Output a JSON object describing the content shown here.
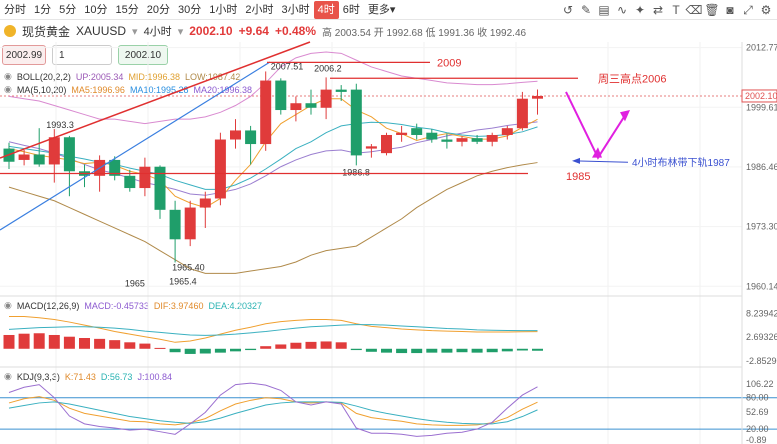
{
  "toolbar": {
    "timeframes": [
      "分时",
      "1分",
      "5分",
      "10分",
      "15分",
      "20分",
      "30分",
      "1小时",
      "2小时",
      "3小时",
      "4时",
      "6时",
      "更多"
    ],
    "active": "4时",
    "more": "更多▾",
    "icons": [
      "history-icon",
      "pen-icon",
      "bar-type-icon",
      "indicator-icon",
      "sparkle-icon",
      "compare-icon",
      "text-icon",
      "eraser-icon",
      "trash-icon",
      "camera-icon",
      "fullscreen-icon",
      "settings-icon"
    ]
  },
  "quote": {
    "name": "现货黄金",
    "symbol": "XAUUSD",
    "timeframe": "4小时",
    "price": "2002.10",
    "change": "+9.64",
    "change_pct": "+0.48%",
    "ohlc": "高 2003.54 开 1992.68 低 1991.36 收 1992.46"
  },
  "order": {
    "sell": "2002.99",
    "lots": "1",
    "buy": "2002.10"
  },
  "indicators": {
    "boll": {
      "name": "BOLL(20,2,2)",
      "up": "UP:2005.34",
      "mid": "MID:1996.38",
      "low": "LOW:1987.42"
    },
    "ma": {
      "name": "MA(5,10,20)",
      "ma5": "MA5:1996.96",
      "ma10": "MA10:1995.28",
      "ma20": "MA20:1996.38"
    },
    "macd": {
      "name": "MACD(12,26,9)",
      "macd": "MACD:-0.45733",
      "dif": "DIF:3.97460",
      "dea": "DEA:4.20327"
    },
    "kdj": {
      "name": "KDJ(9,3,3)",
      "k": "K:71.43",
      "d": "D:56.73",
      "j": "J:100.84"
    }
  },
  "price_axis": {
    "labels": [
      "2012.77",
      "1999.61",
      "1986.46",
      "1973.30",
      "1960.14"
    ],
    "current": "2002.10"
  },
  "macd_axis": [
    "8.23942",
    "2.69326",
    "-2.85290"
  ],
  "kdj_axis": [
    "106.22",
    "80.00",
    "52.69",
    "20.00",
    "-0.89"
  ],
  "annotations": {
    "level_2009": "2009",
    "weds_high": "周三高点2006",
    "boll_lower": "4小时布林带下轨1987",
    "level_1985": "1985"
  },
  "chart_data": {
    "type": "candlestick",
    "title": "现货黄金 XAUUSD 4小时",
    "y_range": [
      1958,
      2014
    ],
    "candles": [
      {
        "o": 1990.5,
        "h": 1991.8,
        "l": 1986.0,
        "c": 1987.6
      },
      {
        "o": 1988.0,
        "h": 1990.2,
        "l": 1986.8,
        "c": 1989.2
      },
      {
        "o": 1989.2,
        "h": 1995.0,
        "l": 1986.5,
        "c": 1987.0
      },
      {
        "o": 1987.0,
        "h": 1994.8,
        "l": 1983.0,
        "c": 1993.0
      },
      {
        "o": 1993.0,
        "h": 1993.3,
        "l": 1980.0,
        "c": 1985.5
      },
      {
        "o": 1985.5,
        "h": 1987.0,
        "l": 1982.0,
        "c": 1984.5
      },
      {
        "o": 1984.5,
        "h": 1989.0,
        "l": 1981.0,
        "c": 1988.0
      },
      {
        "o": 1988.0,
        "h": 1988.8,
        "l": 1983.5,
        "c": 1984.5
      },
      {
        "o": 1984.5,
        "h": 1985.8,
        "l": 1981.0,
        "c": 1981.8
      },
      {
        "o": 1981.8,
        "h": 1988.5,
        "l": 1980.0,
        "c": 1986.5
      },
      {
        "o": 1986.5,
        "h": 1986.8,
        "l": 1975.0,
        "c": 1977.0
      },
      {
        "o": 1977.0,
        "h": 1979.0,
        "l": 1965.4,
        "c": 1970.5
      },
      {
        "o": 1970.5,
        "h": 1979.0,
        "l": 1969.0,
        "c": 1977.5
      },
      {
        "o": 1977.5,
        "h": 1981.0,
        "l": 1973.0,
        "c": 1979.5
      },
      {
        "o": 1979.5,
        "h": 1994.0,
        "l": 1978.0,
        "c": 1992.5
      },
      {
        "o": 1992.5,
        "h": 1997.0,
        "l": 1990.5,
        "c": 1994.5
      },
      {
        "o": 1994.5,
        "h": 1995.5,
        "l": 1987.0,
        "c": 1991.5
      },
      {
        "o": 1991.5,
        "h": 2007.51,
        "l": 1990.0,
        "c": 2005.5
      },
      {
        "o": 2005.5,
        "h": 2006.0,
        "l": 1998.0,
        "c": 1999.0
      },
      {
        "o": 1999.0,
        "h": 2002.0,
        "l": 1996.5,
        "c": 2000.5
      },
      {
        "o": 2000.5,
        "h": 2003.5,
        "l": 1998.0,
        "c": 1999.5
      },
      {
        "o": 1999.5,
        "h": 2006.2,
        "l": 1997.0,
        "c": 2003.5
      },
      {
        "o": 2003.5,
        "h": 2004.5,
        "l": 2001.0,
        "c": 2003.0
      },
      {
        "o": 2003.5,
        "h": 2004.8,
        "l": 1986.8,
        "c": 1989.0
      },
      {
        "o": 1990.5,
        "h": 1991.5,
        "l": 1988.5,
        "c": 1991.0
      },
      {
        "o": 1989.5,
        "h": 1994.0,
        "l": 1989.0,
        "c": 1993.5
      },
      {
        "o": 1993.5,
        "h": 1995.5,
        "l": 1992.0,
        "c": 1994.0
      },
      {
        "o": 1995.0,
        "h": 1996.0,
        "l": 1992.5,
        "c": 1993.5
      },
      {
        "o": 1994.0,
        "h": 1994.8,
        "l": 1991.8,
        "c": 1992.5
      },
      {
        "o": 1992.5,
        "h": 1993.8,
        "l": 1990.5,
        "c": 1992.0
      },
      {
        "o": 1992.0,
        "h": 1993.2,
        "l": 1991.0,
        "c": 1992.8
      },
      {
        "o": 1992.8,
        "h": 1993.5,
        "l": 1991.5,
        "c": 1992.0
      },
      {
        "o": 1992.0,
        "h": 1994.0,
        "l": 1991.0,
        "c": 1993.5
      },
      {
        "o": 1993.5,
        "h": 1995.5,
        "l": 1992.5,
        "c": 1995.0
      },
      {
        "o": 1995.0,
        "h": 2003.0,
        "l": 1994.5,
        "c": 2001.5
      },
      {
        "o": 2001.5,
        "h": 2003.54,
        "l": 1998.0,
        "c": 2002.1
      }
    ],
    "price_labels": [
      {
        "i": 3,
        "v": 1993.3,
        "text": "1993.3"
      },
      {
        "i": 9,
        "v": 1965.0,
        "text": "1965"
      },
      {
        "i": 11,
        "v": 1965.4,
        "text": "1965.40"
      },
      {
        "i": 11,
        "v": 1965.4,
        "text": "1965.4"
      },
      {
        "i": 17,
        "v": 2007.51,
        "text": "2007.51"
      },
      {
        "i": 21,
        "v": 2006.2,
        "text": "2006.2"
      },
      {
        "i": 23,
        "v": 1986.8,
        "text": "1986.8"
      }
    ],
    "macd_hist": [
      3.2,
      3.5,
      3.6,
      3.2,
      2.8,
      2.5,
      2.3,
      2.0,
      1.5,
      1.2,
      0.2,
      -0.8,
      -1.2,
      -1.1,
      -0.9,
      -0.6,
      -0.3,
      0.6,
      1.0,
      1.4,
      1.6,
      1.7,
      1.5,
      -0.3,
      -0.7,
      -0.9,
      -1.0,
      -1.0,
      -0.9,
      -0.9,
      -0.8,
      -0.9,
      -0.8,
      -0.6,
      -0.4,
      -0.46
    ],
    "macd_dif": [
      7.5,
      7.5,
      7.2,
      6.8,
      6.2,
      5.5,
      4.8,
      4.0,
      3.4,
      2.8,
      2.2,
      1.5,
      1.8,
      2.5,
      3.4,
      4.3,
      5.0,
      5.8,
      6.3,
      6.6,
      6.8,
      6.8,
      6.6,
      5.8,
      5.2,
      4.9,
      4.6,
      4.4,
      4.2,
      4.1,
      4.0,
      3.9,
      3.9,
      3.9,
      3.95,
      3.97
    ],
    "macd_dea": [
      4.5,
      4.7,
      4.9,
      5.0,
      5.1,
      5.1,
      5.0,
      4.8,
      4.5,
      4.1,
      3.8,
      3.5,
      3.2,
      3.1,
      3.2,
      3.4,
      3.7,
      4.0,
      4.4,
      4.8,
      5.1,
      5.3,
      5.5,
      5.6,
      5.6,
      5.5,
      5.3,
      5.1,
      4.9,
      4.7,
      4.6,
      4.4,
      4.3,
      4.25,
      4.21,
      4.2
    ],
    "kdj_k": [
      70,
      78,
      82,
      75,
      60,
      50,
      45,
      40,
      35,
      34,
      30,
      28,
      32,
      40,
      55,
      68,
      75,
      80,
      78,
      72,
      70,
      72,
      70,
      50,
      42,
      38,
      35,
      30,
      28,
      27,
      27,
      28,
      32,
      42,
      58,
      71.43
    ],
    "kdj_d": [
      60,
      65,
      70,
      72,
      68,
      62,
      56,
      50,
      44,
      40,
      36,
      33,
      31,
      34,
      41,
      50,
      58,
      66,
      70,
      72,
      72,
      72,
      71,
      64,
      56,
      50,
      45,
      40,
      36,
      33,
      31,
      30,
      30,
      34,
      44,
      56.73
    ],
    "kdj_j": [
      90,
      100,
      105,
      80,
      45,
      30,
      25,
      22,
      18,
      20,
      15,
      10,
      30,
      52,
      85,
      105,
      108,
      104,
      94,
      72,
      66,
      72,
      68,
      22,
      12,
      12,
      10,
      6,
      8,
      12,
      14,
      20,
      33,
      60,
      85,
      100.84
    ],
    "boll_up": [
      2002,
      2001.5,
      2001,
      2000,
      1999,
      1998,
      1997,
      1997,
      1996.5,
      1996,
      1996.5,
      1997,
      1997,
      1997.5,
      1998.5,
      2000,
      2002,
      2005,
      2008.5,
      2010.5,
      2011.5,
      2011.8,
      2011.5,
      2010,
      2008.5,
      2007.5,
      2006.5,
      2006,
      2005.5,
      2005,
      2004.8,
      2004.6,
      2004.6,
      2004.8,
      2005.1,
      2005.34
    ],
    "boll_low": [
      1982,
      1981,
      1980,
      1979,
      1977.5,
      1976,
      1974.5,
      1973,
      1971.5,
      1970,
      1968,
      1966,
      1964,
      1963,
      1963,
      1963,
      1963.5,
      1964,
      1964.5,
      1965.5,
      1967,
      1968,
      1968.5,
      1969,
      1971,
      1973,
      1975,
      1977.5,
      1979.5,
      1981.5,
      1983,
      1984.5,
      1985.5,
      1986.3,
      1986.9,
      1987.42
    ],
    "boll_mid": [
      1992,
      1991.2,
      1990.5,
      1989.5,
      1988.3,
      1987,
      1985.8,
      1985,
      1984,
      1983,
      1982.3,
      1981.5,
      1980.5,
      1980.2,
      1980.8,
      1981.5,
      1982.7,
      1984.5,
      1986.5,
      1988,
      1989.2,
      1990,
      1990.2,
      1989.5,
      1989.8,
      1990.3,
      1990.8,
      1991.8,
      1992.5,
      1993.3,
      1993.9,
      1994.6,
      1995,
      1995.6,
      1996,
      1996.38
    ],
    "ma5": [
      1990.5,
      1989.8,
      1989,
      1988.5,
      1988,
      1987.2,
      1987.5,
      1986.8,
      1985.5,
      1984.8,
      1983.5,
      1980,
      1978.5,
      1977.5,
      1979.5,
      1983.5,
      1987,
      1992,
      1996,
      1998,
      2000,
      2001.5,
      2001.5,
      1999,
      1997.5,
      1995,
      1993.8,
      1992.3,
      1993.2,
      1993.8,
      1993.2,
      1992.6,
      1992.6,
      1993.3,
      1995.2,
      1996.96
    ],
    "ma10": [
      1991,
      1990.5,
      1990,
      1989.5,
      1988.8,
      1988.2,
      1987.5,
      1987,
      1986.2,
      1985.5,
      1984.8,
      1983.5,
      1982.5,
      1981.5,
      1981.5,
      1982.5,
      1984,
      1986,
      1988.2,
      1990.5,
      1992,
      1994,
      1995.5,
      1996,
      1996.3,
      1996.2,
      1995.8,
      1995.2,
      1994.8,
      1994,
      1993.5,
      1993.2,
      1993.3,
      1993.6,
      1994.2,
      1995.28
    ]
  }
}
